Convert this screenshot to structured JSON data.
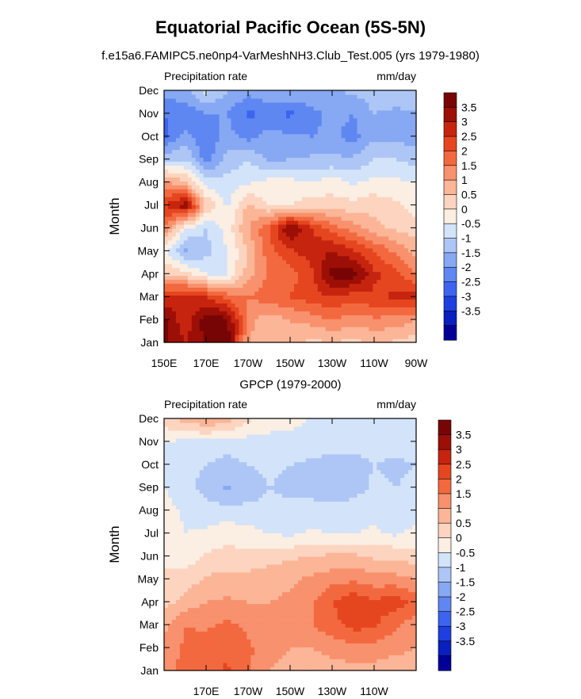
{
  "title": "Equatorial Pacific Ocean (5S-5N)",
  "subtitle": "f.e15a6.FAMIPC5.ne0np4-VarMeshNH3.Club_Test.005 (yrs 1979-1980)",
  "colors": {
    "scale": [
      "#000099",
      "#0a1fbf",
      "#1e3fe0",
      "#3c64ef",
      "#5f87f2",
      "#87a8f3",
      "#adc6f5",
      "#d3e3f9",
      "#fbeee2",
      "#fcd4bf",
      "#fbb597",
      "#f8916d",
      "#f3693f",
      "#e5461f",
      "#c7240f",
      "#9c0f06",
      "#780505"
    ],
    "land": "#ffffff"
  },
  "chart_data": [
    {
      "type": "heatmap",
      "title": "",
      "left_label": "Precipitation rate",
      "right_label": "mm/day",
      "xlabel": "",
      "ylabel": "Month",
      "xlim": [
        150,
        270
      ],
      "x_ticks": [
        150,
        170,
        190,
        210,
        230,
        250,
        270
      ],
      "x_tick_labels": [
        "150E",
        "170E",
        "170W",
        "150W",
        "130W",
        "110W",
        "90W"
      ],
      "y_tick_labels": [
        "Jan",
        "Feb",
        "Mar",
        "Apr",
        "May",
        "Jun",
        "Jul",
        "Aug",
        "Sep",
        "Oct",
        "Nov",
        "Dec"
      ],
      "colorbar_labels": [
        "3.5",
        "3",
        "2.5",
        "2",
        "1.5",
        "1",
        "0.5",
        "0",
        "-0.5",
        "-1",
        "-1.5",
        "-2",
        "-2.5",
        "-3",
        "-3.5"
      ],
      "levels": [
        -3.5,
        -3,
        -2.5,
        -2,
        -1.5,
        -1,
        -0.5,
        0,
        0.5,
        1,
        1.5,
        2,
        2.5,
        3,
        3.5
      ],
      "x": [
        150,
        160,
        170,
        180,
        190,
        200,
        210,
        220,
        230,
        240,
        250,
        260,
        270
      ],
      "z": [
        [
          3.6,
          3.0,
          3.6,
          3.8,
          1.0,
          0.5,
          0.8,
          0.3,
          0.5,
          0.3,
          0.6,
          0.4,
          0.2
        ],
        [
          3.7,
          2.6,
          3.8,
          3.7,
          1.2,
          0.7,
          1.0,
          1.2,
          1.5,
          1.2,
          1.4,
          1.3,
          1.0
        ],
        [
          2.5,
          2.8,
          2.5,
          1.8,
          1.5,
          1.8,
          2.0,
          2.3,
          2.5,
          2.2,
          2.4,
          2.6,
          2.7
        ],
        [
          0.5,
          0.2,
          -0.5,
          -0.6,
          0.8,
          1.6,
          1.8,
          2.3,
          3.7,
          3.8,
          2.6,
          2.2,
          1.5
        ],
        [
          -0.4,
          -1.6,
          -1.2,
          -0.5,
          0.5,
          1.8,
          2.4,
          2.8,
          3.0,
          2.6,
          2.0,
          1.4,
          0.8
        ],
        [
          1.5,
          -0.5,
          -1.0,
          -0.3,
          1.0,
          2.0,
          3.6,
          2.5,
          1.8,
          1.2,
          0.7,
          0.4,
          0.2
        ],
        [
          2.5,
          3.4,
          0.5,
          -0.6,
          0.6,
          0.0,
          0.0,
          0.3,
          0.2,
          0.2,
          0.3,
          0.1,
          -0.2
        ],
        [
          1.2,
          0.5,
          -0.8,
          -0.8,
          -0.6,
          -0.3,
          -0.3,
          -0.5,
          -0.2,
          -0.6,
          -0.3,
          -0.4,
          -0.5
        ],
        [
          -1.2,
          -1.0,
          -2.2,
          -1.3,
          -1.0,
          -1.6,
          -1.5,
          -1.4,
          -1.4,
          -1.4,
          -1.0,
          -1.0,
          -1.2
        ],
        [
          -2.6,
          -1.8,
          -2.5,
          -1.8,
          -2.2,
          -1.8,
          -1.9,
          -2.0,
          -1.9,
          -2.2,
          -1.6,
          -1.6,
          -1.8
        ],
        [
          -2.5,
          -2.4,
          -2.0,
          -2.0,
          -2.6,
          -2.4,
          -2.6,
          -2.2,
          -1.8,
          -2.0,
          -1.5,
          -1.6,
          -1.5
        ],
        [
          -1.8,
          -1.6,
          -0.8,
          -1.5,
          -1.8,
          -1.6,
          -1.5,
          -1.6,
          -1.6,
          -1.4,
          -1.2,
          -1.2,
          -1.4
        ]
      ]
    },
    {
      "type": "heatmap",
      "title": "GPCP (1979-2000)",
      "left_label": "Precipitation rate",
      "right_label": "mm/day",
      "xlabel": "",
      "ylabel": "Month",
      "xlim": [
        150,
        270
      ],
      "x_ticks": [
        170,
        190,
        210,
        230,
        250
      ],
      "x_tick_labels": [
        "170E",
        "170W",
        "150W",
        "130W",
        "110W"
      ],
      "y_tick_labels": [
        "Jan",
        "Feb",
        "Mar",
        "Apr",
        "May",
        "Jun",
        "Jul",
        "Aug",
        "Sep",
        "Oct",
        "Nov",
        "Dec"
      ],
      "colorbar_labels": [
        "3.5",
        "3",
        "2.5",
        "2",
        "1.5",
        "1",
        "0.5",
        "0",
        "-0.5",
        "-1",
        "-1.5",
        "-2",
        "-2.5",
        "-3",
        "-3.5"
      ],
      "levels": [
        -3.5,
        -3,
        -2.5,
        -2,
        -1.5,
        -1,
        -0.5,
        0,
        0.5,
        1,
        1.5,
        2,
        2.5,
        3,
        3.5
      ],
      "x": [
        150,
        160,
        170,
        180,
        190,
        200,
        210,
        220,
        230,
        240,
        250,
        260,
        270
      ],
      "z": [
        [
          1.4,
          1.6,
          1.8,
          2.1,
          1.6,
          1.0,
          0.8,
          0.6,
          0.8,
          0.8,
          0.8,
          0.6,
          0.5
        ],
        [
          1.2,
          1.6,
          1.8,
          1.8,
          1.6,
          1.2,
          1.0,
          1.0,
          1.2,
          1.3,
          1.3,
          1.2,
          1.0
        ],
        [
          0.8,
          1.5,
          1.4,
          1.6,
          1.4,
          1.3,
          1.3,
          1.5,
          1.8,
          2.2,
          2.1,
          1.6,
          1.2
        ],
        [
          0.3,
          0.7,
          1.0,
          1.1,
          1.0,
          1.0,
          1.1,
          1.4,
          2.0,
          2.4,
          2.1,
          2.3,
          1.8
        ],
        [
          0.1,
          0.2,
          0.6,
          0.6,
          0.7,
          0.8,
          0.9,
          1.1,
          1.3,
          1.4,
          1.2,
          1.2,
          1.0
        ],
        [
          -0.1,
          -0.3,
          0.1,
          0.2,
          0.1,
          0.3,
          0.4,
          0.5,
          0.6,
          0.6,
          0.4,
          0.4,
          0.2
        ],
        [
          0.0,
          -0.5,
          -0.4,
          -0.2,
          -0.3,
          -0.5,
          -0.6,
          -0.4,
          -0.5,
          -0.5,
          -0.4,
          -0.6,
          -0.3
        ],
        [
          -0.3,
          -0.6,
          -0.8,
          -0.8,
          -0.9,
          -0.9,
          -0.9,
          -0.9,
          -0.9,
          -0.8,
          -0.7,
          -0.9,
          -0.8
        ],
        [
          -0.5,
          -0.8,
          -1.2,
          -1.6,
          -1.2,
          -1.0,
          -1.1,
          -1.1,
          -1.2,
          -1.2,
          -0.9,
          -1.0,
          -0.9
        ],
        [
          -0.6,
          -0.9,
          -1.0,
          -1.2,
          -1.0,
          -0.9,
          -1.0,
          -1.1,
          -1.2,
          -1.2,
          -1.0,
          -1.1,
          -1.0
        ],
        [
          -0.5,
          -0.6,
          -0.6,
          -0.7,
          -0.7,
          -0.7,
          -0.6,
          -0.7,
          -0.8,
          -0.8,
          -0.7,
          -0.8,
          -0.7
        ],
        [
          0.3,
          0.7,
          1.0,
          0.7,
          0.1,
          -0.2,
          -0.4,
          -0.5,
          -0.6,
          -0.5,
          -0.5,
          -0.5,
          -0.6
        ]
      ]
    }
  ]
}
